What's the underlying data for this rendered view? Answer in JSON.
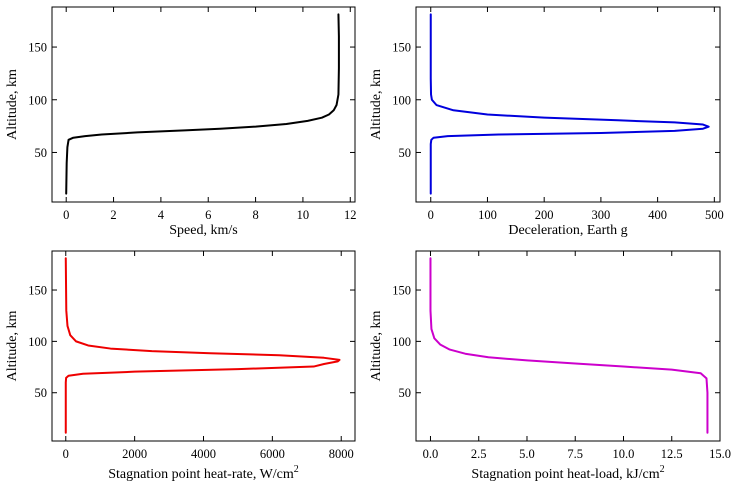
{
  "chart_data": [
    {
      "type": "line",
      "xlabel": "Speed, km/s",
      "ylabel": "Altitude, km",
      "xlim": [
        -0.6,
        12.2
      ],
      "ylim": [
        3,
        188
      ],
      "xticks": [
        0,
        2,
        4,
        6,
        8,
        10,
        12
      ],
      "xtick_labels": [
        "0",
        "2",
        "4",
        "6",
        "8",
        "10",
        "12"
      ],
      "yticks": [
        50,
        100,
        150
      ],
      "ytick_labels": [
        "50",
        "100",
        "150"
      ],
      "grid": false,
      "series": [
        {
          "color": "#000000",
          "x": [
            0.0,
            0.02,
            0.05,
            0.1,
            0.3,
            0.8,
            1.5,
            3.0,
            5.0,
            6.5,
            8.0,
            9.3,
            10.2,
            10.8,
            11.1,
            11.3,
            11.42,
            11.5,
            11.52,
            11.52,
            11.5
          ],
          "y": [
            11,
            40,
            55,
            62,
            64,
            65.5,
            67,
            69,
            71,
            72.5,
            74.5,
            77,
            80,
            83,
            86,
            90,
            95,
            105,
            130,
            160,
            181
          ]
        }
      ]
    },
    {
      "type": "line",
      "xlabel": "Deceleration, Earth g",
      "ylabel": "Altitude, km",
      "xlim": [
        -26,
        510
      ],
      "ylim": [
        3,
        188
      ],
      "xticks": [
        0,
        100,
        200,
        300,
        400,
        500
      ],
      "xtick_labels": [
        "0",
        "100",
        "200",
        "300",
        "400",
        "500"
      ],
      "yticks": [
        50,
        100,
        150
      ],
      "ytick_labels": [
        "50",
        "100",
        "150"
      ],
      "grid": false,
      "series": [
        {
          "color": "#0000dd",
          "x": [
            0,
            0,
            0,
            1,
            5,
            30,
            120,
            300,
            430,
            480,
            490,
            480,
            430,
            330,
            200,
            100,
            40,
            10,
            2,
            0.5,
            0,
            0,
            0
          ],
          "y": [
            11,
            40,
            58,
            62,
            64,
            65.5,
            67,
            68.5,
            70.5,
            72.5,
            74.5,
            76.5,
            78.5,
            80.5,
            83,
            86,
            90,
            95,
            100,
            105,
            120,
            150,
            181
          ]
        }
      ]
    },
    {
      "type": "line",
      "xlabel": "Stagnation point heat-rate, W/cm",
      "xlabel_superscript": "2",
      "ylabel": "Altitude, km",
      "xlim": [
        -400,
        8400
      ],
      "ylim": [
        3,
        188
      ],
      "xticks": [
        0,
        2000,
        4000,
        6000,
        8000
      ],
      "xtick_labels": [
        "0",
        "2000",
        "4000",
        "6000",
        "8000"
      ],
      "yticks": [
        50,
        100,
        150
      ],
      "ytick_labels": [
        "50",
        "100",
        "150"
      ],
      "grid": false,
      "series": [
        {
          "color": "#ee0000",
          "x": [
            0,
            0,
            10,
            80,
            500,
            2000,
            5000,
            7200,
            7500,
            7900,
            7950,
            7500,
            6200,
            4200,
            2500,
            1300,
            650,
            300,
            130,
            50,
            15,
            0
          ],
          "y": [
            11,
            60,
            64.5,
            66.5,
            68.5,
            70.5,
            73,
            75.5,
            78,
            80.5,
            82,
            84,
            86.5,
            88.5,
            90.5,
            93,
            96,
            100,
            106,
            115,
            130,
            181
          ]
        }
      ]
    },
    {
      "type": "line",
      "xlabel": "Stagnation point heat-load, kJ/cm",
      "xlabel_superscript": "2",
      "ylabel": "Altitude, km",
      "xlim": [
        -0.75,
        15.0
      ],
      "ylim": [
        3,
        188
      ],
      "xticks": [
        0.0,
        2.5,
        5.0,
        7.5,
        10.0,
        12.5,
        15.0
      ],
      "xtick_labels": [
        "0.0",
        "2.5",
        "5.0",
        "7.5",
        "10.0",
        "12.5",
        "15.0"
      ],
      "yticks": [
        50,
        100,
        150
      ],
      "ytick_labels": [
        "50",
        "100",
        "150"
      ],
      "grid": false,
      "series": [
        {
          "color": "#cc00cc",
          "x": [
            14.35,
            14.35,
            14.3,
            14.0,
            12.5,
            10.0,
            7.5,
            5.0,
            3.0,
            1.8,
            1.0,
            0.5,
            0.2,
            0.05,
            0.0,
            0.0
          ],
          "y": [
            11,
            50,
            64,
            69,
            72.5,
            75.5,
            78.5,
            81.5,
            84.5,
            88,
            92,
            97,
            103,
            112,
            130,
            181
          ]
        }
      ]
    }
  ]
}
